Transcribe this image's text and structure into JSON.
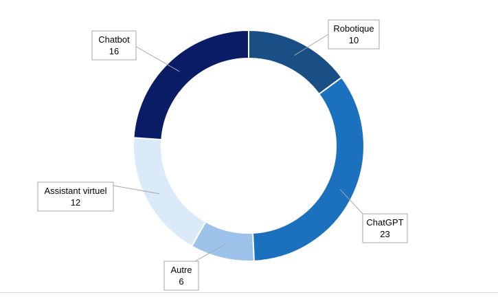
{
  "chart_data": {
    "type": "pie",
    "variant": "donut",
    "title": "",
    "legend": "none",
    "categories": [
      "Robotique",
      "ChatGPT",
      "Autre",
      "Assistant virtuel",
      "Chatbot"
    ],
    "values": [
      10,
      23,
      6,
      12,
      16
    ],
    "colors": [
      "#1a4f85",
      "#1b71bd",
      "#9ec3ea",
      "#dbeaf8",
      "#0b1c66"
    ],
    "labels": [
      {
        "name": "Robotique",
        "value": "10"
      },
      {
        "name": "ChatGPT",
        "value": "23"
      },
      {
        "name": "Autre",
        "value": "6"
      },
      {
        "name": "Assistant virtuel",
        "value": "12"
      },
      {
        "name": "Chatbot",
        "value": "16"
      }
    ]
  }
}
